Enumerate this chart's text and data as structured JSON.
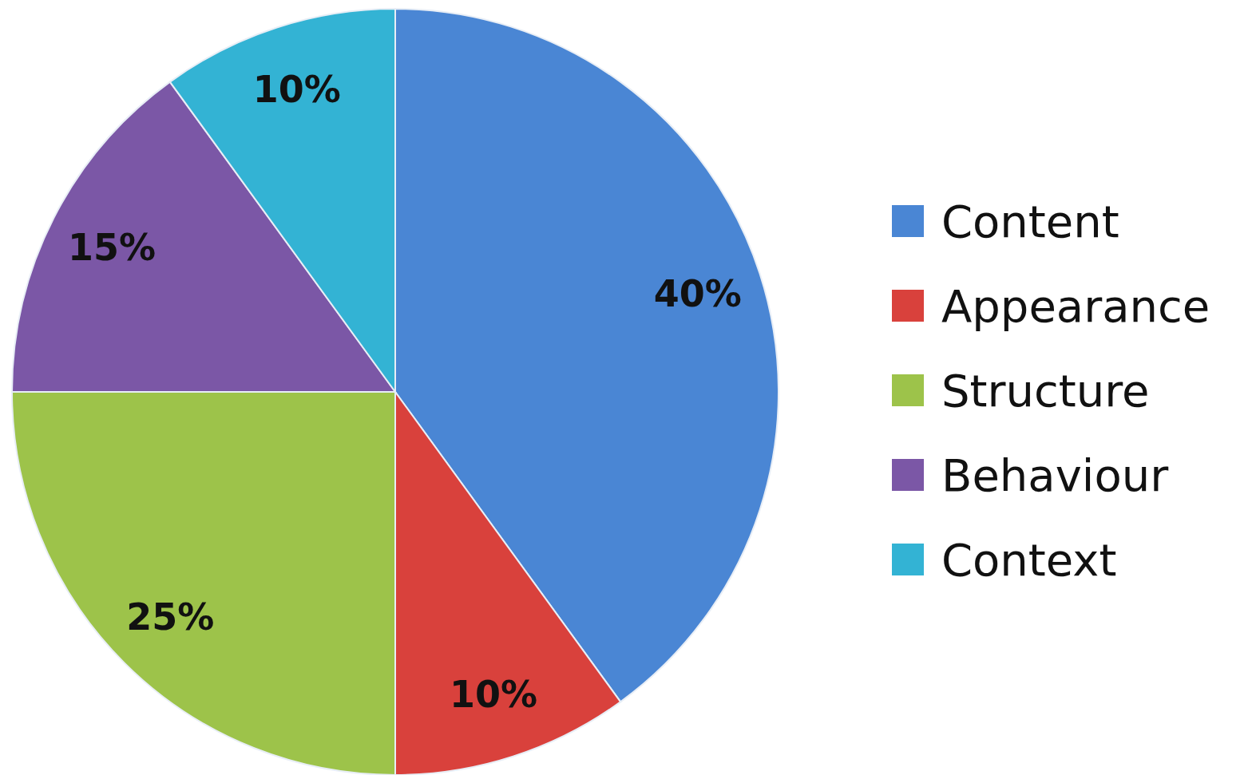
{
  "chart_data": {
    "type": "pie",
    "categories": [
      "Content",
      "Appearance",
      "Structure",
      "Behaviour",
      "Context"
    ],
    "values": [
      40,
      10,
      25,
      15,
      10
    ],
    "colors": [
      "#4a86d4",
      "#d9413c",
      "#9dc34a",
      "#7b57a6",
      "#33b3d4"
    ],
    "value_labels": [
      "40%",
      "10%",
      "25%",
      "15%",
      "10%"
    ],
    "legend": "right"
  }
}
